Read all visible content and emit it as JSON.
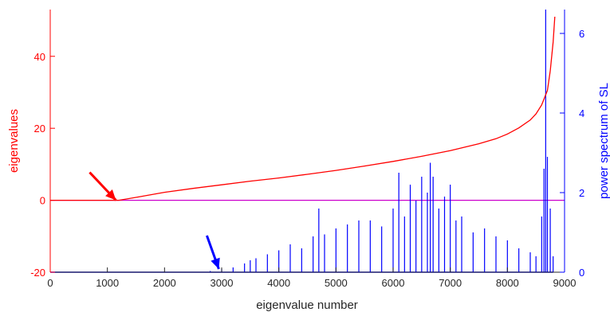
{
  "chart_data": {
    "type": "line",
    "xlabel": "eigenvalue number",
    "xlim": [
      0,
      9000
    ],
    "xticks": [
      "0",
      "1000",
      "2000",
      "3000",
      "4000",
      "5000",
      "6000",
      "7000",
      "8000",
      "9000"
    ],
    "left_axis": {
      "label": "eigenvalues",
      "color": "#ff0000",
      "ylim": [
        -20,
        53
      ],
      "ticks": [
        "-20",
        "0",
        "20",
        "40"
      ]
    },
    "right_axis": {
      "label": "power spectrum of SL",
      "color": "#0000ff",
      "ylim": [
        0,
        6.6
      ],
      "ticks": [
        "0",
        "2",
        "4",
        "6"
      ]
    },
    "zero_line": {
      "color": "#cc00cc",
      "y": 0
    },
    "series": [
      {
        "axis": "left",
        "color": "#ff0000",
        "x": [
          0,
          500,
          1000,
          1200,
          1500,
          2000,
          2500,
          3000,
          3500,
          4000,
          4500,
          5000,
          5500,
          6000,
          6500,
          7000,
          7500,
          7800,
          8000,
          8200,
          8400,
          8500,
          8600,
          8700,
          8750,
          8800,
          8830
        ],
        "y": [
          0,
          0,
          0,
          0,
          0.8,
          2.2,
          3.3,
          4.3,
          5.3,
          6.2,
          7.2,
          8.3,
          9.5,
          10.8,
          12.2,
          13.8,
          15.7,
          17.1,
          18.4,
          20.1,
          22.3,
          24,
          26.5,
          30.5,
          36,
          44,
          51
        ]
      },
      {
        "axis": "right",
        "color": "#0000ff",
        "kind": "spikes",
        "x": [
          2800,
          3000,
          3200,
          3400,
          3500,
          3600,
          3800,
          4000,
          4200,
          4400,
          4600,
          4700,
          4800,
          5000,
          5200,
          5400,
          5600,
          5800,
          6000,
          6100,
          6200,
          6300,
          6400,
          6500,
          6600,
          6650,
          6700,
          6800,
          6900,
          7000,
          7100,
          7200,
          7400,
          7600,
          7800,
          8000,
          8200,
          8400,
          8500,
          8600,
          8640,
          8670,
          8700,
          8750,
          8800
        ],
        "y": [
          0.03,
          0.08,
          0.12,
          0.22,
          0.3,
          0.35,
          0.45,
          0.55,
          0.7,
          0.6,
          0.9,
          1.6,
          0.95,
          1.1,
          1.2,
          1.3,
          1.3,
          1.15,
          1.6,
          2.5,
          1.4,
          2.2,
          1.8,
          2.4,
          2.0,
          2.75,
          2.4,
          1.6,
          1.9,
          2.2,
          1.3,
          1.4,
          1.0,
          1.1,
          0.9,
          0.8,
          0.6,
          0.5,
          0.4,
          1.4,
          2.6,
          6.6,
          2.9,
          1.6,
          0.4
        ]
      }
    ],
    "annotations": [
      {
        "type": "arrow",
        "color": "#ff0000",
        "axis": "left",
        "x": 1150,
        "y": 0
      },
      {
        "type": "arrow",
        "color": "#0000ff",
        "axis": "right",
        "x": 2950,
        "y": 0.08
      }
    ]
  }
}
